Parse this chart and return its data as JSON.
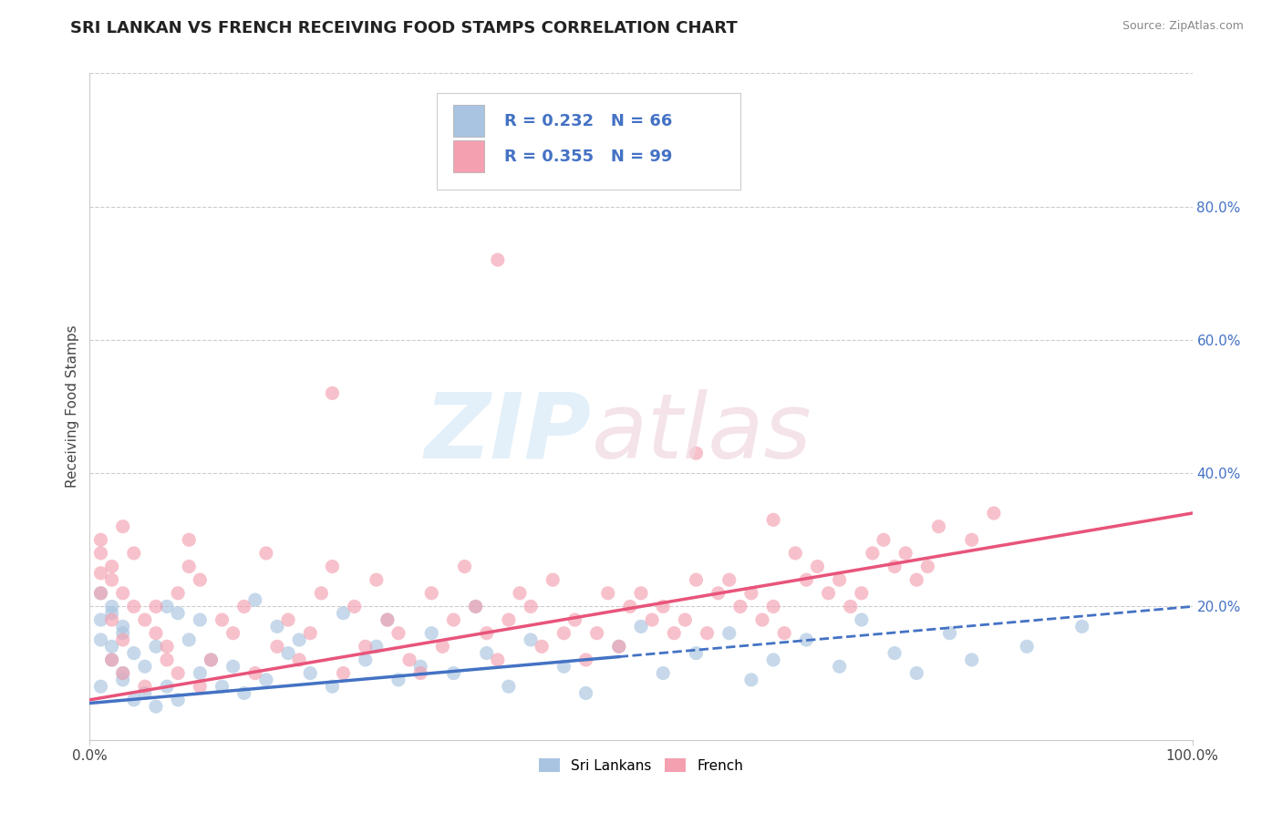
{
  "title": "SRI LANKAN VS FRENCH RECEIVING FOOD STAMPS CORRELATION CHART",
  "source_text": "Source: ZipAtlas.com",
  "ylabel": "Receiving Food Stamps",
  "xlabel": "",
  "xlim": [
    0,
    1.0
  ],
  "ylim": [
    0,
    1.0
  ],
  "x_tick_labels": [
    "0.0%",
    "100.0%"
  ],
  "y_tick_labels": [
    "20.0%",
    "40.0%",
    "60.0%",
    "80.0%"
  ],
  "y_tick_values": [
    0.2,
    0.4,
    0.6,
    0.8
  ],
  "watermark_zip": "ZIP",
  "watermark_atlas": "atlas",
  "sri_lankan_color": "#a8c4e0",
  "french_color": "#f4a0b0",
  "sri_lankan_line_color": "#4472c4",
  "french_line_color": "#e8547a",
  "sri_lankan_R": 0.232,
  "sri_lankan_N": 66,
  "french_R": 0.355,
  "french_N": 99,
  "legend_label_sri": "Sri Lankans",
  "legend_label_french": "French",
  "background_color": "#ffffff",
  "grid_color": "#cccccc",
  "title_fontsize": 13,
  "axis_label_fontsize": 11,
  "tick_fontsize": 11,
  "legend_fontsize": 13
}
